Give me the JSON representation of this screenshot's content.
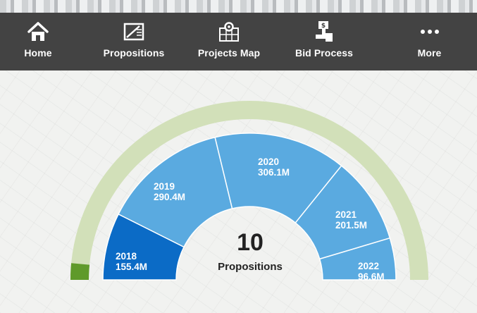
{
  "nav": {
    "items": [
      {
        "label": "Home",
        "icon": "home-icon"
      },
      {
        "label": "Propositions",
        "icon": "document-icon"
      },
      {
        "label": "Projects Map",
        "icon": "map-pin-icon"
      },
      {
        "label": "Bid Process",
        "icon": "bid-icon"
      },
      {
        "label": "More",
        "icon": "more-dots-icon"
      }
    ]
  },
  "gauge": {
    "count": "10",
    "count_label": "Propositions",
    "segments": [
      {
        "year": "2018",
        "amount": "155.4M"
      },
      {
        "year": "2019",
        "amount": "290.4M"
      },
      {
        "year": "2020",
        "amount": "306.1M"
      },
      {
        "year": "2021",
        "amount": "201.5M"
      },
      {
        "year": "2022",
        "amount": "96.6M"
      }
    ]
  },
  "colors": {
    "nav_bg": "#434343",
    "selected_segment": "#0b6bc6",
    "segment": "#5aaae0",
    "outer_track": "#d2e0b9",
    "outer_fill": "#5f9a2a"
  }
}
